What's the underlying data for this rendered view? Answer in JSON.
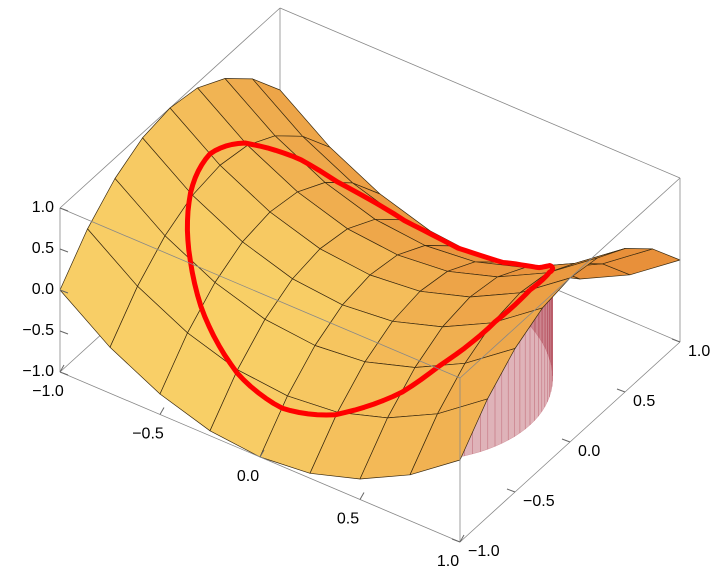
{
  "chart_data": {
    "type": "surface3d",
    "x": [
      -1,
      -0.75,
      -0.5,
      -0.25,
      0,
      0.25,
      0.5,
      0.75,
      1
    ],
    "y": [
      -1,
      -0.75,
      -0.5,
      -0.25,
      0,
      0.25,
      0.5,
      0.75,
      1
    ],
    "z": [
      [
        0,
        -0.44,
        -0.75,
        -0.94,
        -1,
        -0.94,
        -0.75,
        -0.44,
        0
      ],
      [
        0.44,
        0,
        -0.31,
        -0.5,
        -0.56,
        -0.5,
        -0.31,
        0,
        0.44
      ],
      [
        0.75,
        0.31,
        0,
        -0.19,
        -0.25,
        -0.19,
        0,
        0.31,
        0.75
      ],
      [
        0.94,
        0.5,
        0.19,
        0,
        -0.06,
        0,
        0.19,
        0.5,
        0.94
      ],
      [
        1,
        0.56,
        0.25,
        0.06,
        0,
        0.06,
        0.25,
        0.56,
        1
      ],
      [
        0.94,
        0.5,
        0.19,
        0,
        -0.06,
        0,
        0.19,
        0.5,
        0.94
      ],
      [
        0.75,
        0.31,
        0,
        -0.19,
        -0.25,
        -0.19,
        0,
        0.31,
        0.75
      ],
      [
        0.44,
        0,
        -0.31,
        -0.5,
        -0.56,
        -0.5,
        -0.31,
        0,
        0.44
      ],
      [
        0,
        -0.44,
        -0.75,
        -0.94,
        -1,
        -0.94,
        -0.75,
        -0.44,
        0
      ]
    ],
    "xlim": [
      -1,
      1
    ],
    "ylim": [
      -1,
      1
    ],
    "zlim": [
      -1,
      1
    ],
    "xticks": [
      {
        "value": -1,
        "label": "−1.0"
      },
      {
        "value": -0.5,
        "label": "−0.5"
      },
      {
        "value": 0,
        "label": "0.0"
      },
      0.5,
      {
        "value": 1,
        "label": "1.0"
      }
    ],
    "yticks": [
      {
        "value": -1,
        "label": "−1.0"
      },
      {
        "value": -0.5,
        "label": "−0.5"
      },
      {
        "value": 0,
        "label": "0.0"
      },
      0.5,
      {
        "value": 1,
        "label": "1.0"
      }
    ],
    "zticks": [
      {
        "value": -1,
        "label": "−1.0"
      },
      {
        "value": -0.5,
        "label": "−0.5"
      },
      {
        "value": 0,
        "label": "0.0"
      },
      0.5,
      {
        "value": 1,
        "label": "1.0"
      }
    ],
    "surface_colors": [
      "#e8903a",
      "#ffe878"
    ],
    "curve": {
      "radius": 0.8,
      "color": "#ff0000"
    },
    "cylinder_color": "#b04050"
  }
}
